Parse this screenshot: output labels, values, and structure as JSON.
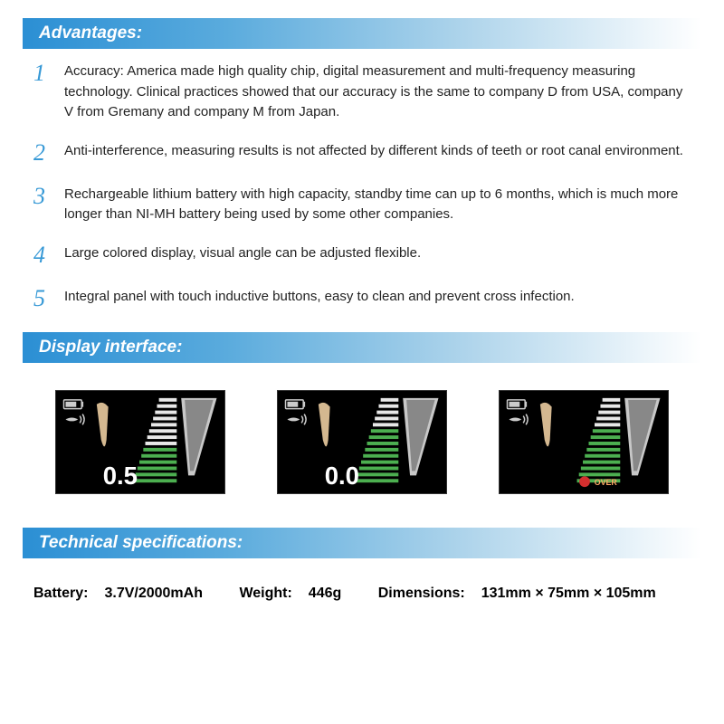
{
  "sections": {
    "advantages": {
      "title": "Advantages:",
      "items": [
        {
          "num": "1",
          "text": "Accuracy: America made high quality chip, digital measurement and multi-frequency measuring technology. Clinical practices showed that our accuracy is the same to company D from USA, company V from Gremany and company M from Japan."
        },
        {
          "num": "2",
          "text": "Anti-interference, measuring results is not affected by different kinds of teeth or root canal environment."
        },
        {
          "num": "3",
          "text": "Rechargeable lithium battery with high capacity, standby time can up to 6 months, which is much more longer than NI-MH battery being used by some other companies."
        },
        {
          "num": "4",
          "text": "Large colored display, visual angle can be adjusted flexible."
        },
        {
          "num": "5",
          "text": "Integral panel with touch inductive buttons, easy to clean and prevent cross infection."
        }
      ]
    },
    "display": {
      "title": "Display interface:",
      "screens": [
        {
          "value": "0.5",
          "bars_green": 6,
          "bars_white": 8,
          "over": false
        },
        {
          "value": "0.0",
          "bars_green": 9,
          "bars_white": 5,
          "over": false
        },
        {
          "value": "",
          "bars_green": 9,
          "bars_white": 5,
          "over": true,
          "over_label": "OVER"
        }
      ]
    },
    "tech": {
      "title": "Technical specifications:",
      "battery_label": "Battery:",
      "battery": "3.7V/2000mAh",
      "weight_label": "Weight:",
      "weight": "446g",
      "dim_label": "Dimensions:",
      "dim": "131mm × 75mm  × 105mm"
    }
  },
  "colors": {
    "header_grad_start": "#2b8fd4",
    "num_color": "#3799d6",
    "bar_green": "#4caf50",
    "bar_white": "#f0f0f0",
    "over_red": "#d32f2f"
  }
}
